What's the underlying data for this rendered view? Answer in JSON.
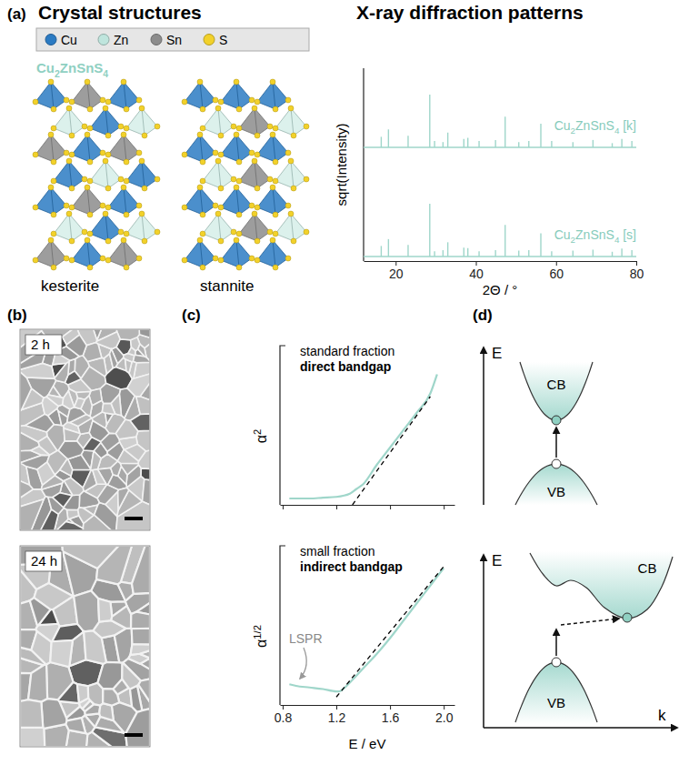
{
  "panel_a": {
    "label": "(a)",
    "title_structures": "Crystal structures",
    "title_xrd": "X-ray diffraction patterns",
    "atoms": [
      {
        "name": "Cu",
        "color": "#2b7bc3"
      },
      {
        "name": "Zn",
        "color": "#bfe5dd"
      },
      {
        "name": "Sn",
        "color": "#8c8c8c"
      },
      {
        "name": "S",
        "color": "#f2d12a"
      }
    ],
    "compound": "Cu2ZnSnS4",
    "structures": [
      "kesterite",
      "stannite"
    ]
  },
  "chart_data": [
    {
      "type": "stick",
      "x_label": "2Θ / °",
      "y_label": "sqrt(Intensity)",
      "xlim": [
        12,
        80
      ],
      "xticks": [
        20,
        40,
        60,
        80
      ],
      "ylim": [
        0,
        100
      ],
      "tick_labels": "x",
      "x": [
        16.4,
        18.2,
        23.1,
        28.5,
        29.7,
        31.8,
        33.0,
        37.0,
        38.0,
        40.8,
        44.9,
        47.3,
        50.7,
        53.2,
        56.2,
        58.9,
        64.2,
        69.2,
        74.0,
        76.4,
        78.9
      ],
      "series": [
        {
          "name": "Cu2ZnSnS4 [k]",
          "color": "#9fd6ca",
          "values": [
            20,
            34,
            22,
            100,
            12,
            10,
            28,
            16,
            18,
            12,
            14,
            58,
            10,
            12,
            45,
            12,
            10,
            14,
            8,
            16,
            12
          ]
        },
        {
          "name": "Cu2ZnSnS4 [s]",
          "color": "#9fd6ca",
          "values": [
            20,
            33,
            22,
            100,
            10,
            12,
            27,
            17,
            16,
            10,
            12,
            60,
            11,
            12,
            44,
            10,
            11,
            13,
            9,
            15,
            12
          ]
        }
      ]
    },
    {
      "type": "line",
      "annotations": [
        "standard fraction",
        "direct bandgap"
      ],
      "y_label": "α2",
      "xlim": [
        0.78,
        2.08
      ],
      "xticks": [
        0.8,
        1.2,
        1.6,
        2
      ],
      "ylim": [
        0,
        1
      ],
      "tick_labels": false,
      "x": [
        0.85,
        1.0,
        1.1,
        1.2,
        1.3,
        1.35,
        1.4,
        1.5,
        1.6,
        1.7,
        1.8,
        1.9,
        1.95
      ],
      "series": [
        {
          "color": "#9fd6ca",
          "values": [
            0.04,
            0.04,
            0.045,
            0.05,
            0.07,
            0.1,
            0.13,
            0.25,
            0.36,
            0.47,
            0.58,
            0.7,
            0.82
          ]
        },
        {
          "color": "#000000",
          "line_style": "dashed",
          "x": [
            1.32,
            1.9
          ],
          "values": [
            0,
            0.68
          ]
        }
      ]
    },
    {
      "type": "line",
      "annotations": [
        "small fraction",
        "indirect bandgap",
        "LSPR"
      ],
      "x_label": "E / eV",
      "y_label": "α1/2",
      "xlim": [
        0.78,
        2.08
      ],
      "xticks": [
        0.8,
        1.2,
        1.6,
        {
          "value": 2,
          "label": "2.0"
        }
      ],
      "ylim": [
        0,
        1
      ],
      "tick_labels": "x",
      "x": [
        0.85,
        0.9,
        1.0,
        1.1,
        1.2,
        1.22,
        1.25,
        1.3,
        1.4,
        1.5,
        1.6,
        1.7,
        1.8,
        1.9,
        2.0
      ],
      "series": [
        {
          "color": "#9fd6ca",
          "values": [
            0.13,
            0.12,
            0.11,
            0.1,
            0.085,
            0.085,
            0.1,
            0.14,
            0.23,
            0.32,
            0.42,
            0.53,
            0.64,
            0.75,
            0.86
          ]
        },
        {
          "color": "#000000",
          "line_style": "dashed",
          "x": [
            1.2,
            2.0
          ],
          "values": [
            0.05,
            0.87
          ]
        }
      ]
    }
  ],
  "panel_b": {
    "label": "(b)",
    "images": [
      "2 h",
      "24 h"
    ]
  },
  "panel_c": {
    "label": "(c)"
  },
  "panel_d": {
    "label": "(d)",
    "diagrams": [
      {
        "y_label": "E",
        "cb": "CB",
        "vb": "VB"
      },
      {
        "y_label": "E",
        "x_label": "k",
        "cb": "CB",
        "vb": "VB"
      }
    ]
  }
}
